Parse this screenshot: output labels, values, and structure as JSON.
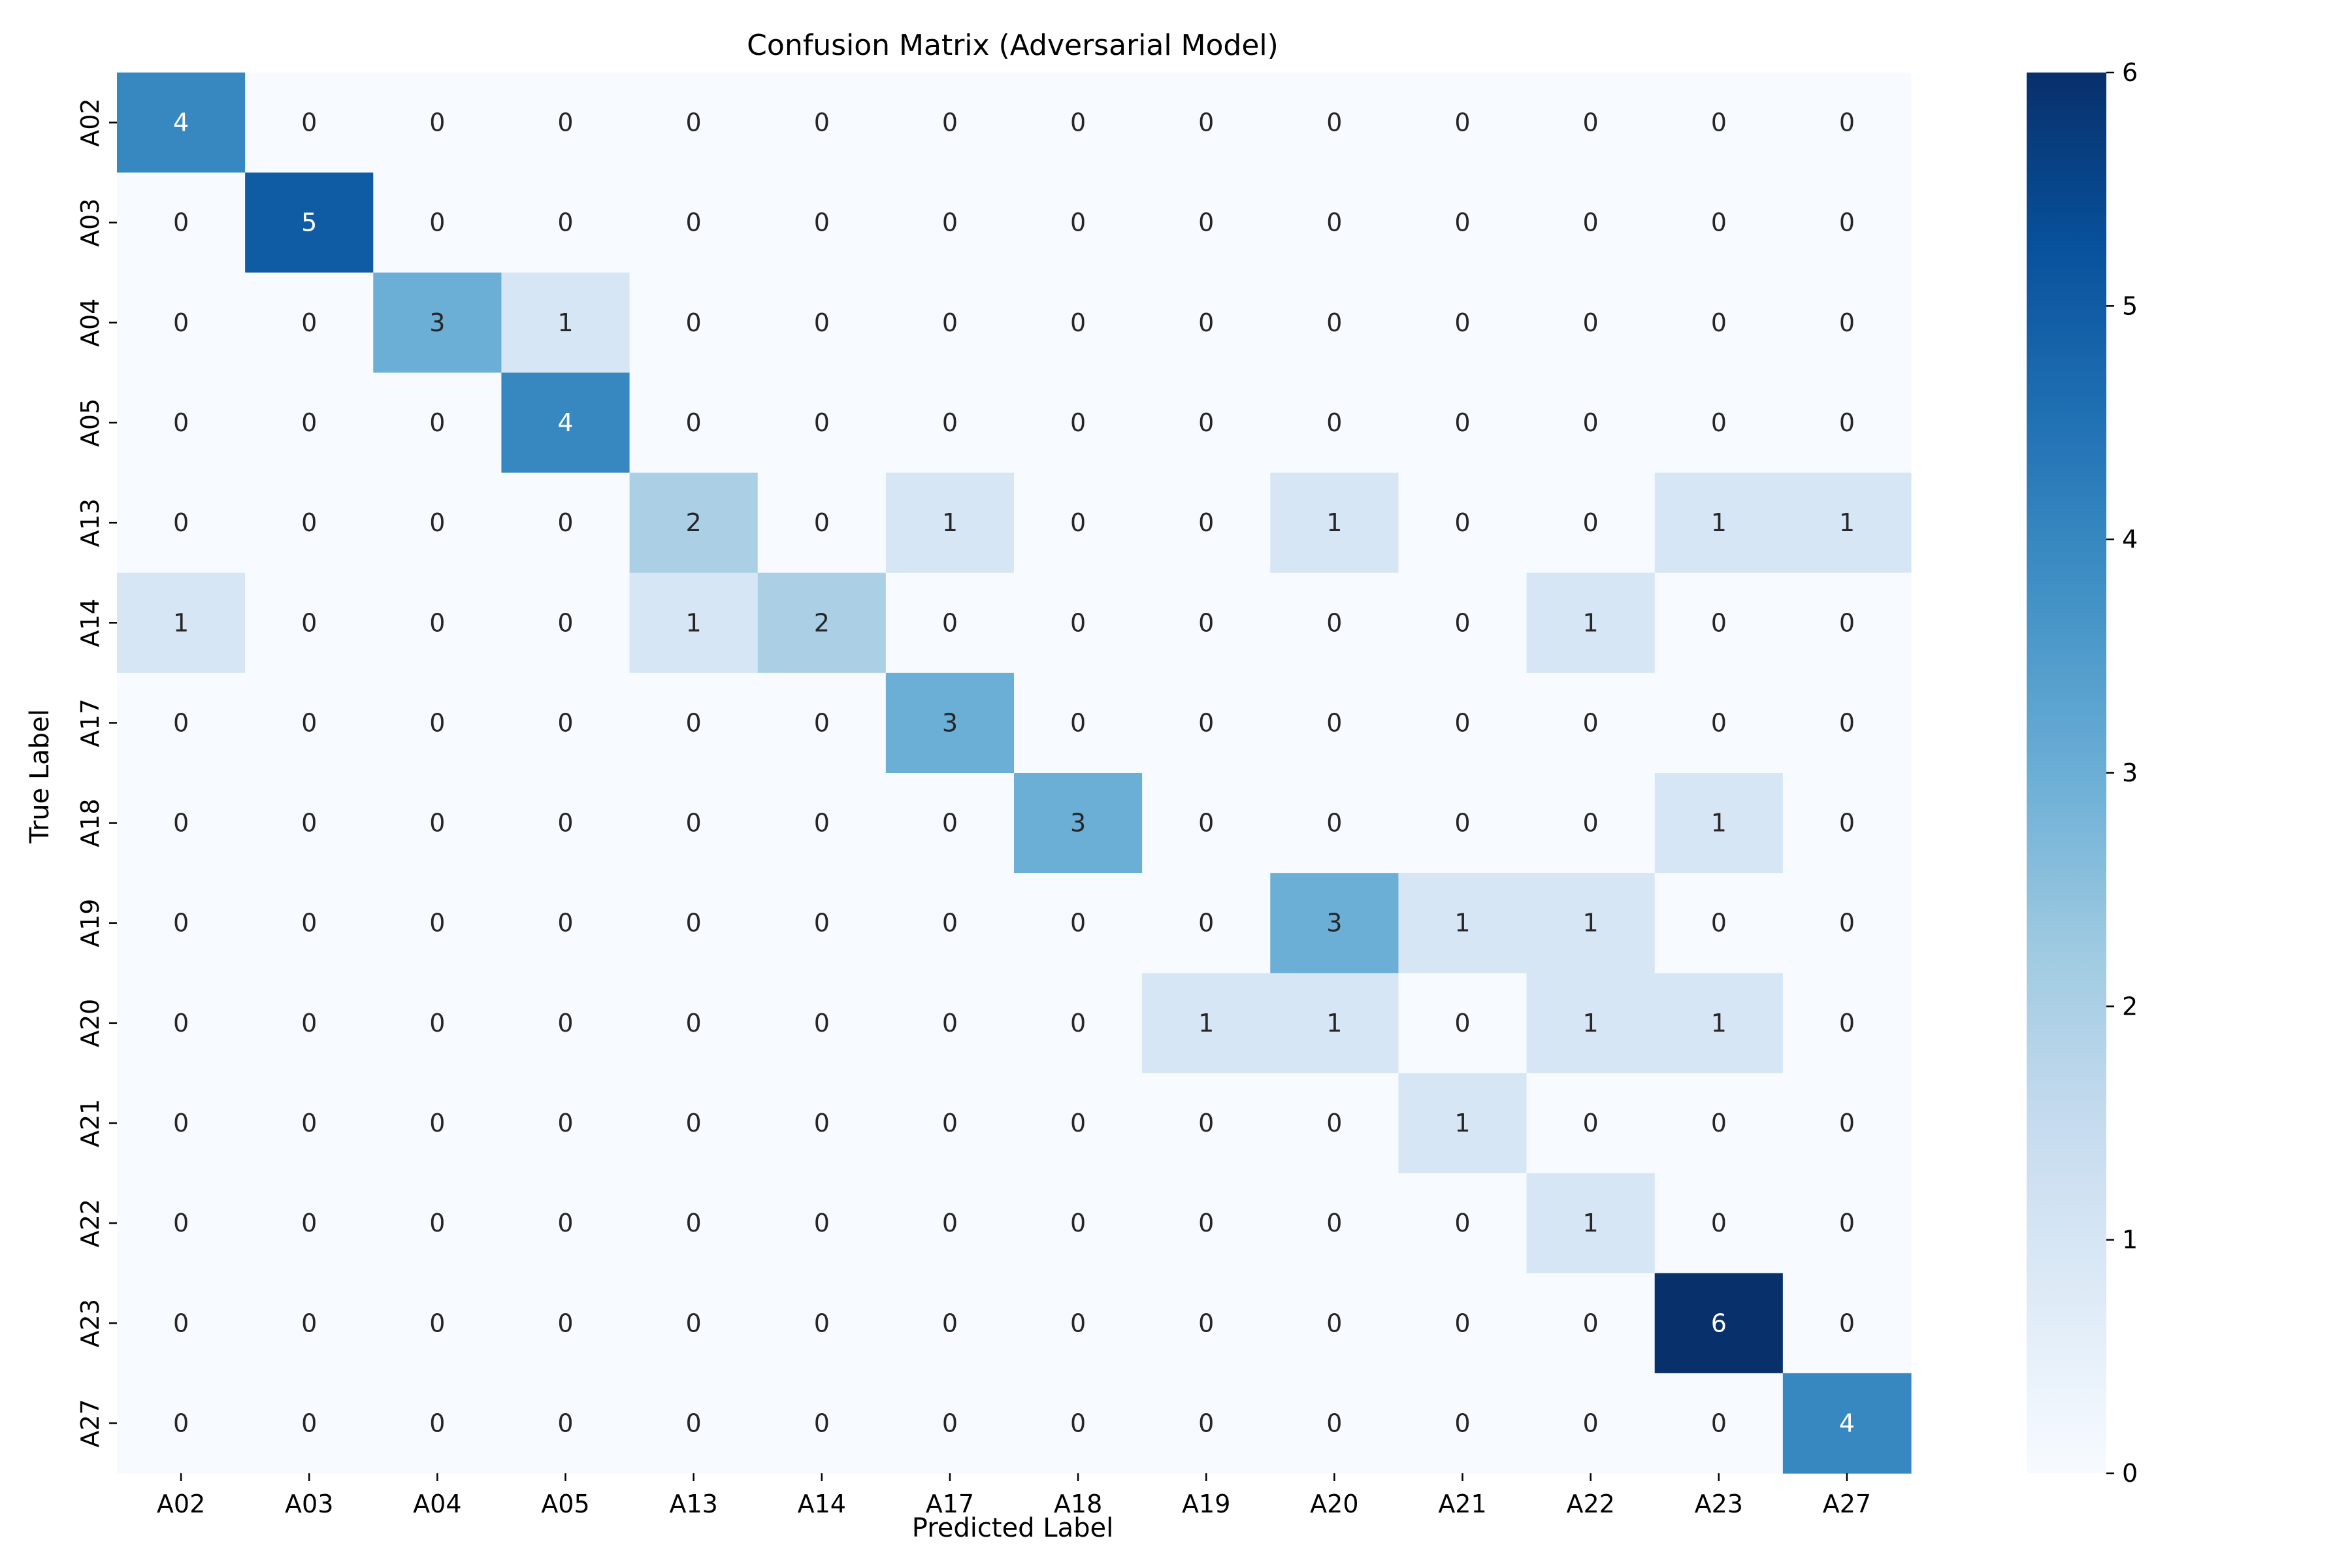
{
  "chart_data": {
    "type": "heatmap",
    "title": "Confusion Matrix (Adversarial Model)",
    "xlabel": "Predicted Label",
    "ylabel": "True Label",
    "x_categories": [
      "A02",
      "A03",
      "A04",
      "A05",
      "A13",
      "A14",
      "A17",
      "A18",
      "A19",
      "A20",
      "A21",
      "A22",
      "A23",
      "A27"
    ],
    "y_categories": [
      "A02",
      "A03",
      "A04",
      "A05",
      "A13",
      "A14",
      "A17",
      "A18",
      "A19",
      "A20",
      "A21",
      "A22",
      "A23",
      "A27"
    ],
    "values": [
      [
        4,
        0,
        0,
        0,
        0,
        0,
        0,
        0,
        0,
        0,
        0,
        0,
        0,
        0
      ],
      [
        0,
        5,
        0,
        0,
        0,
        0,
        0,
        0,
        0,
        0,
        0,
        0,
        0,
        0
      ],
      [
        0,
        0,
        3,
        1,
        0,
        0,
        0,
        0,
        0,
        0,
        0,
        0,
        0,
        0
      ],
      [
        0,
        0,
        0,
        4,
        0,
        0,
        0,
        0,
        0,
        0,
        0,
        0,
        0,
        0
      ],
      [
        0,
        0,
        0,
        0,
        2,
        0,
        1,
        0,
        0,
        1,
        0,
        0,
        1,
        1
      ],
      [
        1,
        0,
        0,
        0,
        1,
        2,
        0,
        0,
        0,
        0,
        0,
        1,
        0,
        0
      ],
      [
        0,
        0,
        0,
        0,
        0,
        0,
        3,
        0,
        0,
        0,
        0,
        0,
        0,
        0
      ],
      [
        0,
        0,
        0,
        0,
        0,
        0,
        0,
        3,
        0,
        0,
        0,
        0,
        1,
        0
      ],
      [
        0,
        0,
        0,
        0,
        0,
        0,
        0,
        0,
        0,
        3,
        1,
        1,
        0,
        0
      ],
      [
        0,
        0,
        0,
        0,
        0,
        0,
        0,
        0,
        1,
        1,
        0,
        1,
        1,
        0
      ],
      [
        0,
        0,
        0,
        0,
        0,
        0,
        0,
        0,
        0,
        0,
        1,
        0,
        0,
        0
      ],
      [
        0,
        0,
        0,
        0,
        0,
        0,
        0,
        0,
        0,
        0,
        0,
        1,
        0,
        0
      ],
      [
        0,
        0,
        0,
        0,
        0,
        0,
        0,
        0,
        0,
        0,
        0,
        0,
        6,
        0
      ],
      [
        0,
        0,
        0,
        0,
        0,
        0,
        0,
        0,
        0,
        0,
        0,
        0,
        0,
        4
      ]
    ],
    "colormap": "Blues",
    "vmin": 0,
    "vmax": 6,
    "colorbar_ticks": [
      0,
      1,
      2,
      3,
      4,
      5,
      6
    ],
    "annotations": true,
    "colors": {
      "low": "#f7fbff",
      "high": "#08306b",
      "dark_text": "#262626",
      "light_text": "#ffffff"
    }
  }
}
